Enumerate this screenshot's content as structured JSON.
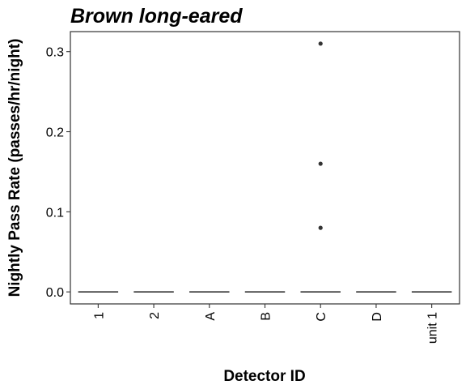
{
  "chart_data": {
    "type": "boxplot",
    "title": "Brown long-eared",
    "xlabel": "Detector ID",
    "ylabel": "Nightly Pass Rate (passes/hr/night)",
    "categories": [
      "1",
      "2",
      "A",
      "B",
      "C",
      "D",
      "unit 1"
    ],
    "medians": [
      0,
      0,
      0,
      0,
      0,
      0,
      0
    ],
    "outliers": [
      {
        "category": "C",
        "y": 0.31
      },
      {
        "category": "C",
        "y": 0.16
      },
      {
        "category": "C",
        "y": 0.08
      }
    ],
    "ylim": [
      -0.015,
      0.325
    ],
    "yticks": [
      "0.0",
      "0.1",
      "0.2",
      "0.3"
    ],
    "grid": false,
    "legend": "none",
    "colors": {
      "box": "#333333",
      "point": "#333333",
      "panel_border": "#333333"
    }
  }
}
